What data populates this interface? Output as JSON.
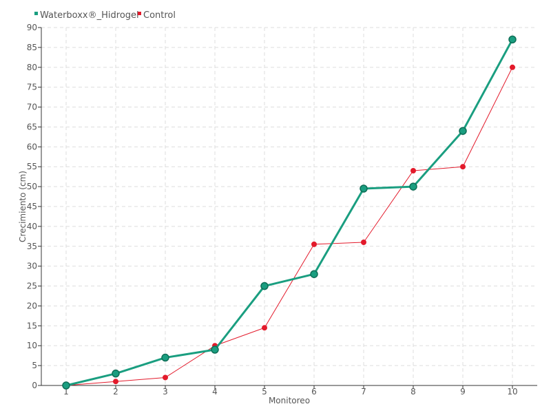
{
  "chart_data": {
    "type": "line",
    "title": "",
    "xlabel": "Monitoreo",
    "ylabel": "Crecimiento (cm)",
    "categories": [
      "1",
      "2",
      "3",
      "4",
      "5",
      "6",
      "7",
      "8",
      "9",
      "10"
    ],
    "ylim": [
      0,
      90
    ],
    "yticks": [
      0,
      5,
      10,
      15,
      20,
      25,
      30,
      35,
      40,
      45,
      50,
      55,
      60,
      65,
      70,
      75,
      80,
      85,
      90
    ],
    "grid": true,
    "legend_position": "top-left",
    "series": [
      {
        "name": "Waterboxx®_Hidrogel",
        "color": "#1a9e80",
        "values": [
          0,
          3,
          7,
          9,
          25,
          28,
          49.5,
          50,
          64,
          87
        ]
      },
      {
        "name": "Control",
        "color": "#e31a2b",
        "values": [
          0,
          1,
          2,
          10,
          14.5,
          35.5,
          36,
          54,
          55,
          80
        ]
      }
    ]
  }
}
